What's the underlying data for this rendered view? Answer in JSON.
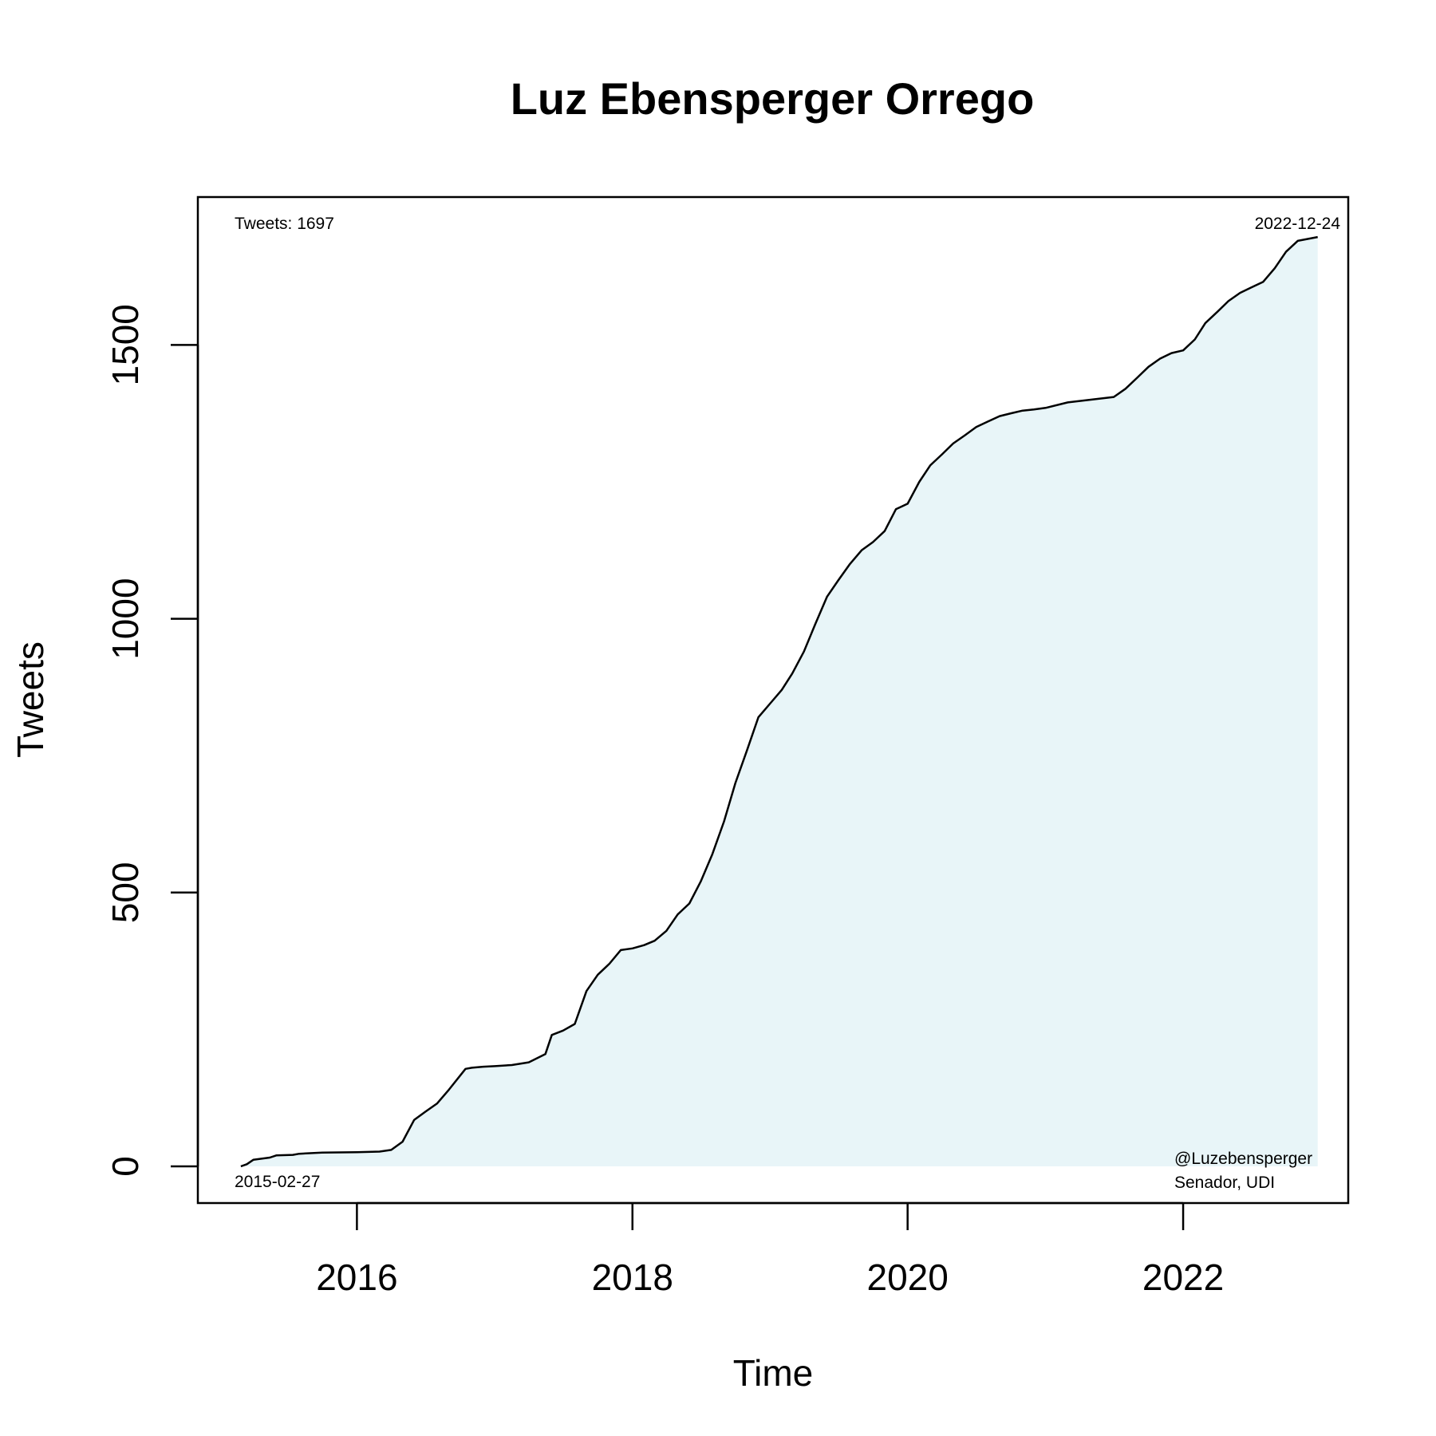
{
  "chart_data": {
    "type": "area",
    "title": "Luz Ebensperger Orrego",
    "xlabel": "Time",
    "ylabel": "Tweets",
    "xlim": [
      "2014-11-05",
      "2023-03-15"
    ],
    "ylim": [
      -67,
      1770
    ],
    "x_ticks": [
      {
        "value": "2016-01-01",
        "label": "2016"
      },
      {
        "value": "2018-01-01",
        "label": "2018"
      },
      {
        "value": "2020-01-01",
        "label": "2020"
      },
      {
        "value": "2022-01-01",
        "label": "2022"
      }
    ],
    "y_ticks": [
      {
        "value": 0,
        "label": "0"
      },
      {
        "value": 500,
        "label": "500"
      },
      {
        "value": 1000,
        "label": "1000"
      },
      {
        "value": 1500,
        "label": "1500"
      }
    ],
    "annotations": {
      "top_left": "Tweets: 1697",
      "top_right": "2022-12-24",
      "bottom_left": "2015-02-27",
      "bottom_right_line1": "@Luzebensperger",
      "bottom_right_line2": "Senador, UDI"
    },
    "grid": false,
    "legend": "none",
    "colors": {
      "line": "#000000",
      "fill": "#d6ecf2",
      "axis": "#000000"
    },
    "series": [
      {
        "x": [
          "2015-02-27",
          "2015-03-15",
          "2015-04-01",
          "2015-05-15",
          "2015-06-01",
          "2015-07-15",
          "2015-08-01",
          "2015-10-01",
          "2016-01-01",
          "2016-03-01",
          "2016-04-01",
          "2016-05-01",
          "2016-06-01",
          "2016-07-01",
          "2016-08-01",
          "2016-09-01",
          "2016-10-15",
          "2016-11-01",
          "2016-12-01",
          "2017-01-01",
          "2017-02-15",
          "2017-04-01",
          "2017-05-15",
          "2017-06-01",
          "2017-07-01",
          "2017-08-01",
          "2017-09-01",
          "2017-10-01",
          "2017-11-01",
          "2017-12-01",
          "2018-01-01",
          "2018-02-01",
          "2018-03-01",
          "2018-04-01",
          "2018-05-01",
          "2018-06-01",
          "2018-07-01",
          "2018-08-01",
          "2018-09-01",
          "2018-10-01",
          "2018-11-01",
          "2018-12-01",
          "2019-01-01",
          "2019-02-01",
          "2019-03-01",
          "2019-04-01",
          "2019-05-01",
          "2019-06-01",
          "2019-07-01",
          "2019-08-01",
          "2019-09-01",
          "2019-10-01",
          "2019-11-01",
          "2019-12-01",
          "2020-01-01",
          "2020-02-01",
          "2020-03-01",
          "2020-04-01",
          "2020-05-01",
          "2020-06-01",
          "2020-07-01",
          "2020-08-01",
          "2020-09-01",
          "2020-10-01",
          "2020-11-01",
          "2020-12-01",
          "2021-01-01",
          "2021-03-01",
          "2021-05-01",
          "2021-07-01",
          "2021-08-01",
          "2021-09-01",
          "2021-10-01",
          "2021-11-01",
          "2021-12-01",
          "2022-01-01",
          "2022-02-01",
          "2022-03-01",
          "2022-04-01",
          "2022-05-01",
          "2022-06-01",
          "2022-07-01",
          "2022-08-01",
          "2022-09-01",
          "2022-10-01",
          "2022-11-01",
          "2022-12-24"
        ],
        "y": [
          0,
          4,
          12,
          16,
          20,
          21,
          23,
          25,
          26,
          27,
          30,
          45,
          85,
          100,
          115,
          140,
          178,
          180,
          182,
          183,
          185,
          190,
          205,
          240,
          248,
          260,
          320,
          350,
          370,
          395,
          398,
          404,
          412,
          430,
          460,
          480,
          520,
          570,
          630,
          700,
          760,
          820,
          845,
          870,
          900,
          940,
          990,
          1040,
          1070,
          1100,
          1125,
          1140,
          1160,
          1200,
          1210,
          1250,
          1280,
          1300,
          1320,
          1335,
          1350,
          1360,
          1370,
          1375,
          1380,
          1382,
          1385,
          1395,
          1400,
          1405,
          1420,
          1440,
          1460,
          1475,
          1485,
          1490,
          1510,
          1540,
          1560,
          1580,
          1595,
          1605,
          1615,
          1640,
          1670,
          1690,
          1697
        ]
      }
    ]
  }
}
